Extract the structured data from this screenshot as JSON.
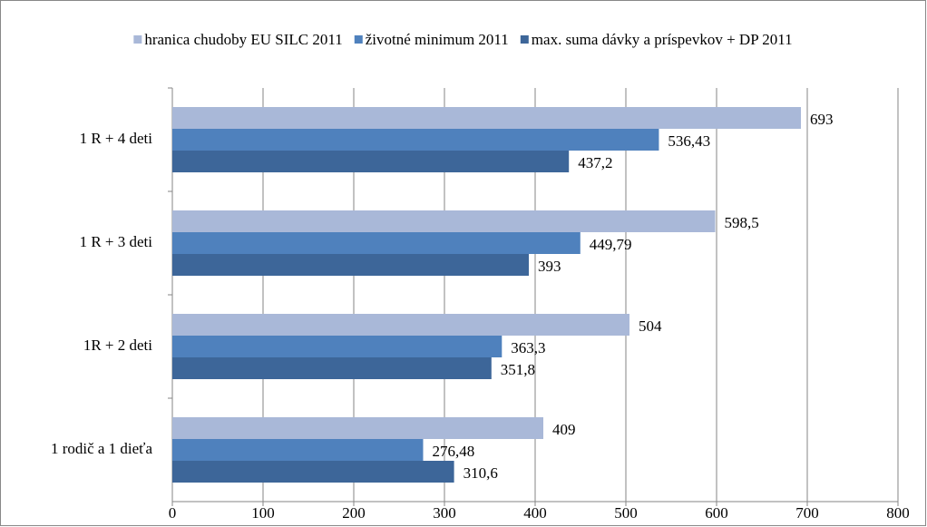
{
  "chart_data": {
    "type": "hbar",
    "categories": [
      "1 rodič a 1 dieťa",
      "1R + 2 deti",
      "1 R + 3 deti",
      "1 R + 4 deti"
    ],
    "series": [
      {
        "name": "hranica chudoby  EU SILC 2011",
        "color": "#a9b8d8",
        "values": [
          409,
          504,
          598.5,
          693
        ],
        "value_labels": [
          "409",
          "504",
          "598,5",
          "693"
        ]
      },
      {
        "name": "životné minimum 2011",
        "color": "#4f81bd",
        "values": [
          276.48,
          363.3,
          449.79,
          536.43
        ],
        "value_labels": [
          "276,48",
          "363,3",
          "449,79",
          "536,43"
        ]
      },
      {
        "name": "max. suma dávky a príspevkov + DP 2011",
        "color": "#3d6699",
        "values": [
          310.6,
          351.8,
          393,
          437.2
        ],
        "value_labels": [
          "310,6",
          "351,8",
          "393",
          "437,2"
        ]
      }
    ],
    "xlim": [
      0,
      800
    ],
    "xticks": [
      0,
      100,
      200,
      300,
      400,
      500,
      600,
      700,
      800
    ],
    "grid": true,
    "legend": "top"
  }
}
